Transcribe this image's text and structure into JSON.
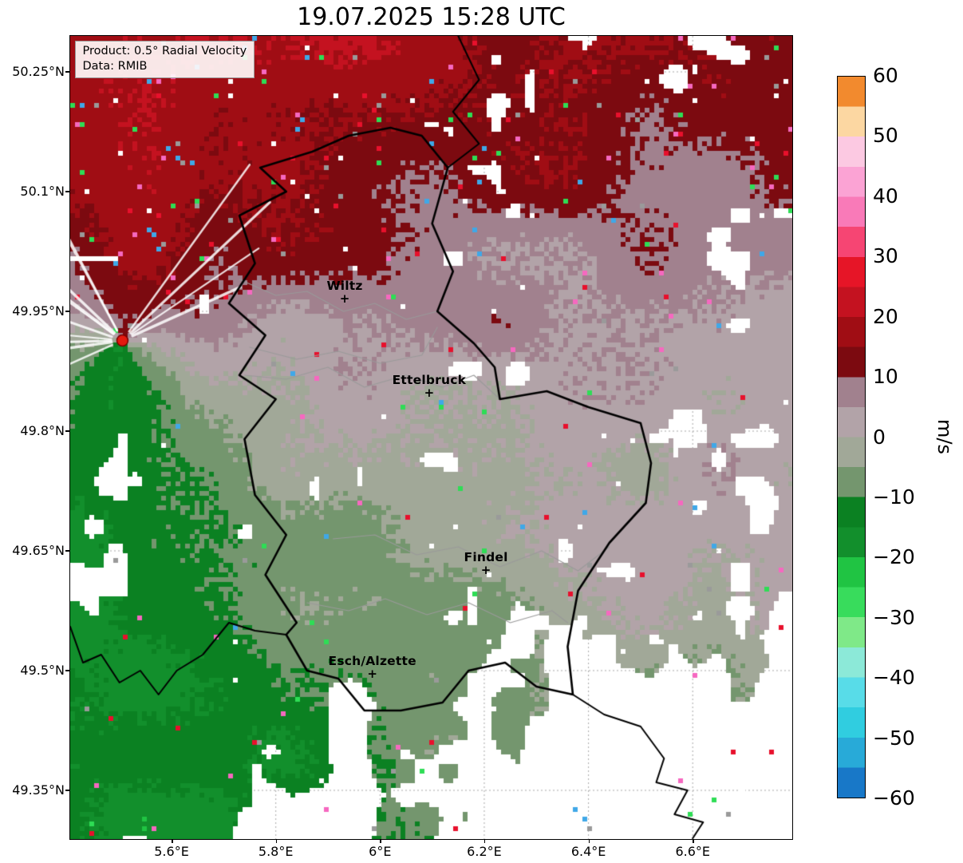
{
  "title": "19.07.2025 15:28 UTC",
  "info_box": {
    "line1": "Product: 0.5° Radial Velocity",
    "line2": "Data: RMIB"
  },
  "colorbar": {
    "unit": "m/s",
    "min": -60,
    "max": 60,
    "tick_values": [
      60,
      50,
      40,
      30,
      20,
      10,
      0,
      -10,
      -20,
      -30,
      -40,
      -50,
      -60
    ],
    "tick_labels": [
      "60",
      "50",
      "40",
      "30",
      "20",
      "10",
      "0",
      "−10",
      "−20",
      "−30",
      "−40",
      "−50",
      "−60"
    ],
    "stops": [
      {
        "from": -60,
        "to": -55,
        "color": "#1878c8"
      },
      {
        "from": -55,
        "to": -50,
        "color": "#28aad8"
      },
      {
        "from": -50,
        "to": -45,
        "color": "#30cde0"
      },
      {
        "from": -45,
        "to": -40,
        "color": "#58dce8"
      },
      {
        "from": -40,
        "to": -35,
        "color": "#8ce9d8"
      },
      {
        "from": -35,
        "to": -30,
        "color": "#7fe988"
      },
      {
        "from": -30,
        "to": -25,
        "color": "#38dc5c"
      },
      {
        "from": -25,
        "to": -20,
        "color": "#20c443"
      },
      {
        "from": -20,
        "to": -15,
        "color": "#128f2c"
      },
      {
        "from": -15,
        "to": -10,
        "color": "#0b8122"
      },
      {
        "from": -10,
        "to": -5,
        "color": "#74966e"
      },
      {
        "from": -5,
        "to": 0,
        "color": "#a1a898"
      },
      {
        "from": 0,
        "to": 5,
        "color": "#b2a3a8"
      },
      {
        "from": 5,
        "to": 10,
        "color": "#a1818e"
      },
      {
        "from": 10,
        "to": 15,
        "color": "#7c0a10"
      },
      {
        "from": 15,
        "to": 20,
        "color": "#a00d14"
      },
      {
        "from": 20,
        "to": 25,
        "color": "#c41220"
      },
      {
        "from": 25,
        "to": 30,
        "color": "#e61527"
      },
      {
        "from": 30,
        "to": 35,
        "color": "#f64573"
      },
      {
        "from": 35,
        "to": 40,
        "color": "#f97ab8"
      },
      {
        "from": 40,
        "to": 45,
        "color": "#fba3d4"
      },
      {
        "from": 45,
        "to": 50,
        "color": "#fcc9e2"
      },
      {
        "from": 50,
        "to": 55,
        "color": "#fcd7a2"
      },
      {
        "from": 55,
        "to": 60,
        "color": "#f28a2e"
      }
    ]
  },
  "axes": {
    "x_ticks": [
      {
        "lon": 5.6,
        "label": "5.6°E"
      },
      {
        "lon": 5.8,
        "label": "5.8°E"
      },
      {
        "lon": 6.0,
        "label": "6°E"
      },
      {
        "lon": 6.2,
        "label": "6.2°E"
      },
      {
        "lon": 6.4,
        "label": "6.4°E"
      },
      {
        "lon": 6.6,
        "label": "6.6°E"
      }
    ],
    "y_ticks": [
      {
        "lat": 50.25,
        "label": "50.25°N"
      },
      {
        "lat": 50.1,
        "label": "50.1°N"
      },
      {
        "lat": 49.95,
        "label": "49.95°N"
      },
      {
        "lat": 49.8,
        "label": "49.8°N"
      },
      {
        "lat": 49.65,
        "label": "49.65°N"
      },
      {
        "lat": 49.5,
        "label": "49.5°N"
      },
      {
        "lat": 49.35,
        "label": "49.35°N"
      }
    ]
  },
  "map": {
    "extent": {
      "lon_min": 5.4055,
      "lon_max": 6.791,
      "lat_min": 49.289,
      "lat_max": 50.295
    },
    "radar_site": {
      "lon": 5.5057,
      "lat": 49.9135,
      "dot_color": "#e31a10",
      "dot_edge": "#7a0000"
    },
    "marker_glyph": "+",
    "cities": [
      {
        "name": "Wiltz",
        "lon": 5.933,
        "lat": 49.966
      },
      {
        "name": "Ettelbruck",
        "lon": 6.095,
        "lat": 49.848
      },
      {
        "name": "Findel",
        "lon": 6.204,
        "lat": 49.626
      },
      {
        "name": "Esch/Alzette",
        "lon": 5.986,
        "lat": 49.496
      }
    ],
    "field": {
      "wind_toward_azimuth_deg": 20,
      "speed_base_ms": 13.2,
      "speed_north_extra_ms": 6.3,
      "speed_south_extra_ms": 3.5,
      "no_echo_color": "#ffffff",
      "speckle_colors": [
        "#2edd55",
        "#e8102c",
        "#3fa8e8",
        "#ffffff",
        "#f668c0",
        "#9a9a9a"
      ]
    },
    "borders": {
      "luxembourg": [
        [
          6.02,
          50.18
        ],
        [
          6.08,
          50.17
        ],
        [
          6.13,
          50.13
        ],
        [
          6.1,
          50.06
        ],
        [
          6.14,
          50.0
        ],
        [
          6.11,
          49.95
        ],
        [
          6.18,
          49.91
        ],
        [
          6.22,
          49.88
        ],
        [
          6.23,
          49.84
        ],
        [
          6.32,
          49.85
        ],
        [
          6.4,
          49.83
        ],
        [
          6.5,
          49.81
        ],
        [
          6.52,
          49.76
        ],
        [
          6.51,
          49.71
        ],
        [
          6.44,
          49.66
        ],
        [
          6.38,
          49.6
        ],
        [
          6.36,
          49.53
        ],
        [
          6.37,
          49.47
        ],
        [
          6.3,
          49.48
        ],
        [
          6.24,
          49.51
        ],
        [
          6.17,
          49.5
        ],
        [
          6.12,
          49.46
        ],
        [
          6.04,
          49.45
        ],
        [
          5.97,
          49.45
        ],
        [
          5.92,
          49.49
        ],
        [
          5.86,
          49.5
        ],
        [
          5.82,
          49.545
        ],
        [
          5.84,
          49.56
        ],
        [
          5.78,
          49.62
        ],
        [
          5.82,
          49.67
        ],
        [
          5.76,
          49.72
        ],
        [
          5.74,
          49.79
        ],
        [
          5.8,
          49.84
        ],
        [
          5.73,
          49.87
        ],
        [
          5.78,
          49.92
        ],
        [
          5.71,
          49.96
        ],
        [
          5.76,
          50.01
        ],
        [
          5.73,
          50.07
        ],
        [
          5.82,
          50.1
        ],
        [
          5.77,
          50.13
        ],
        [
          5.87,
          50.15
        ],
        [
          5.94,
          50.17
        ],
        [
          6.02,
          50.18
        ]
      ],
      "belgium_germany": [
        [
          6.13,
          50.13
        ],
        [
          6.19,
          50.16
        ],
        [
          6.14,
          50.2
        ],
        [
          6.19,
          50.24
        ],
        [
          6.15,
          50.295
        ]
      ],
      "france_belgium": [
        [
          5.82,
          49.545
        ],
        [
          5.76,
          49.55
        ],
        [
          5.71,
          49.56
        ],
        [
          5.66,
          49.52
        ],
        [
          5.61,
          49.5
        ],
        [
          5.575,
          49.47
        ],
        [
          5.54,
          49.5
        ],
        [
          5.5,
          49.485
        ],
        [
          5.465,
          49.52
        ],
        [
          5.43,
          49.51
        ],
        [
          5.4055,
          49.555
        ]
      ],
      "france_germany": [
        [
          6.37,
          49.47
        ],
        [
          6.43,
          49.445
        ],
        [
          6.5,
          49.43
        ],
        [
          6.545,
          49.39
        ],
        [
          6.53,
          49.36
        ],
        [
          6.59,
          49.35
        ],
        [
          6.565,
          49.32
        ],
        [
          6.62,
          49.31
        ],
        [
          6.6,
          49.29
        ]
      ],
      "districts": [
        [
          [
            5.73,
            49.99
          ],
          [
            5.8,
            49.97
          ],
          [
            5.86,
            49.975
          ],
          [
            5.93,
            49.95
          ],
          [
            5.99,
            49.96
          ],
          [
            6.05,
            49.94
          ],
          [
            6.11,
            49.95
          ]
        ],
        [
          [
            5.75,
            49.905
          ],
          [
            5.84,
            49.89
          ],
          [
            5.92,
            49.9
          ],
          [
            6.0,
            49.885
          ],
          [
            6.08,
            49.895
          ],
          [
            6.11,
            49.93
          ]
        ],
        [
          [
            5.74,
            49.87
          ],
          [
            5.82,
            49.865
          ],
          [
            5.9,
            49.88
          ],
          [
            5.97,
            49.855
          ],
          [
            6.05,
            49.87
          ],
          [
            6.12,
            49.855
          ],
          [
            6.18,
            49.87
          ],
          [
            6.23,
            49.84
          ]
        ],
        [
          [
            5.91,
            49.665
          ],
          [
            5.99,
            49.67
          ],
          [
            6.07,
            49.645
          ],
          [
            6.15,
            49.655
          ],
          [
            6.23,
            49.63
          ],
          [
            6.31,
            49.65
          ],
          [
            6.38,
            49.625
          ],
          [
            6.44,
            49.655
          ]
        ],
        [
          [
            5.86,
            49.585
          ],
          [
            5.94,
            49.575
          ],
          [
            6.01,
            49.59
          ],
          [
            6.09,
            49.57
          ],
          [
            6.17,
            49.585
          ],
          [
            6.25,
            49.56
          ],
          [
            6.33,
            49.575
          ],
          [
            6.36,
            49.56
          ]
        ]
      ]
    }
  },
  "chart_data": {
    "type": "heatmap",
    "title": "19.07.2025 15:28 UTC",
    "xlabel": "",
    "ylabel": "",
    "x_tick_labels": [
      "5.6°E",
      "5.8°E",
      "6°E",
      "6.2°E",
      "6.4°E",
      "6.6°E"
    ],
    "y_tick_labels": [
      "50.25°N",
      "50.1°N",
      "49.95°N",
      "49.8°N",
      "49.65°N",
      "49.5°N",
      "49.35°N"
    ],
    "xlim": [
      5.4055,
      6.791
    ],
    "ylim": [
      49.289,
      50.295
    ],
    "grid": "dotted",
    "colorbar": {
      "label": "m/s",
      "range": [
        -60,
        60
      ],
      "ticks": [
        60,
        50,
        40,
        30,
        20,
        10,
        0,
        -10,
        -20,
        -30,
        -40,
        -50,
        -60
      ],
      "position": "right"
    },
    "annotations": [
      "Wiltz",
      "Ettelbruck",
      "Findel",
      "Esch/Alzette"
    ],
    "radar_site_lonlat": [
      5.5057,
      49.9135
    ],
    "field_regions": [
      {
        "area": "north third of map (toward Belgium/Germany)",
        "radial_velocity_ms": "+10 to +20",
        "color": "dark red"
      },
      {
        "area": "WNW–ESE band through radar extending east",
        "radial_velocity_ms": "0 to +10",
        "color": "gray-mauve"
      },
      {
        "area": "south/southwest of radar",
        "radial_velocity_ms": "0 to -10",
        "color": "gray-green"
      },
      {
        "area": "far southwest at long range",
        "radial_velocity_ms": "-10 to -20",
        "color": "dark green"
      },
      {
        "area": "southeast quadrant and far south",
        "radial_velocity_ms": "no echo",
        "color": "white"
      }
    ]
  }
}
